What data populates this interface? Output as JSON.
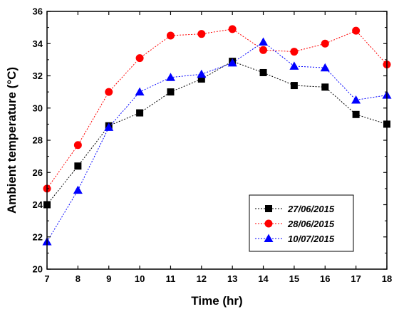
{
  "chart_data": {
    "type": "line",
    "xlabel": "Time (hr)",
    "ylabel": "Ambient temperature (°C)",
    "xlim": [
      7,
      18
    ],
    "ylim": [
      20,
      36
    ],
    "x_ticks": [
      7,
      8,
      9,
      10,
      11,
      12,
      13,
      14,
      15,
      16,
      17,
      18
    ],
    "y_ticks": [
      20,
      22,
      24,
      26,
      28,
      30,
      32,
      34,
      36
    ],
    "grid": false,
    "legend_position": "bottom-right",
    "x": [
      7,
      8,
      9,
      10,
      11,
      12,
      13,
      14,
      15,
      16,
      17,
      18
    ],
    "series": [
      {
        "name": "27/06/2015",
        "color": "#000000",
        "marker": "square",
        "values": [
          24.0,
          26.4,
          28.9,
          29.7,
          31.0,
          31.8,
          32.9,
          32.2,
          31.4,
          31.3,
          29.6,
          29.0
        ]
      },
      {
        "name": "28/06/2015",
        "color": "#ff0000",
        "marker": "circle",
        "values": [
          25.0,
          27.7,
          31.0,
          33.1,
          34.5,
          34.6,
          34.9,
          33.6,
          33.5,
          34.0,
          34.8,
          32.7
        ]
      },
      {
        "name": "10/07/2015",
        "color": "#0000ff",
        "marker": "triangle",
        "values": [
          21.7,
          24.9,
          28.8,
          31.0,
          31.9,
          32.1,
          32.8,
          34.1,
          32.6,
          32.5,
          30.5,
          30.8
        ]
      }
    ]
  }
}
